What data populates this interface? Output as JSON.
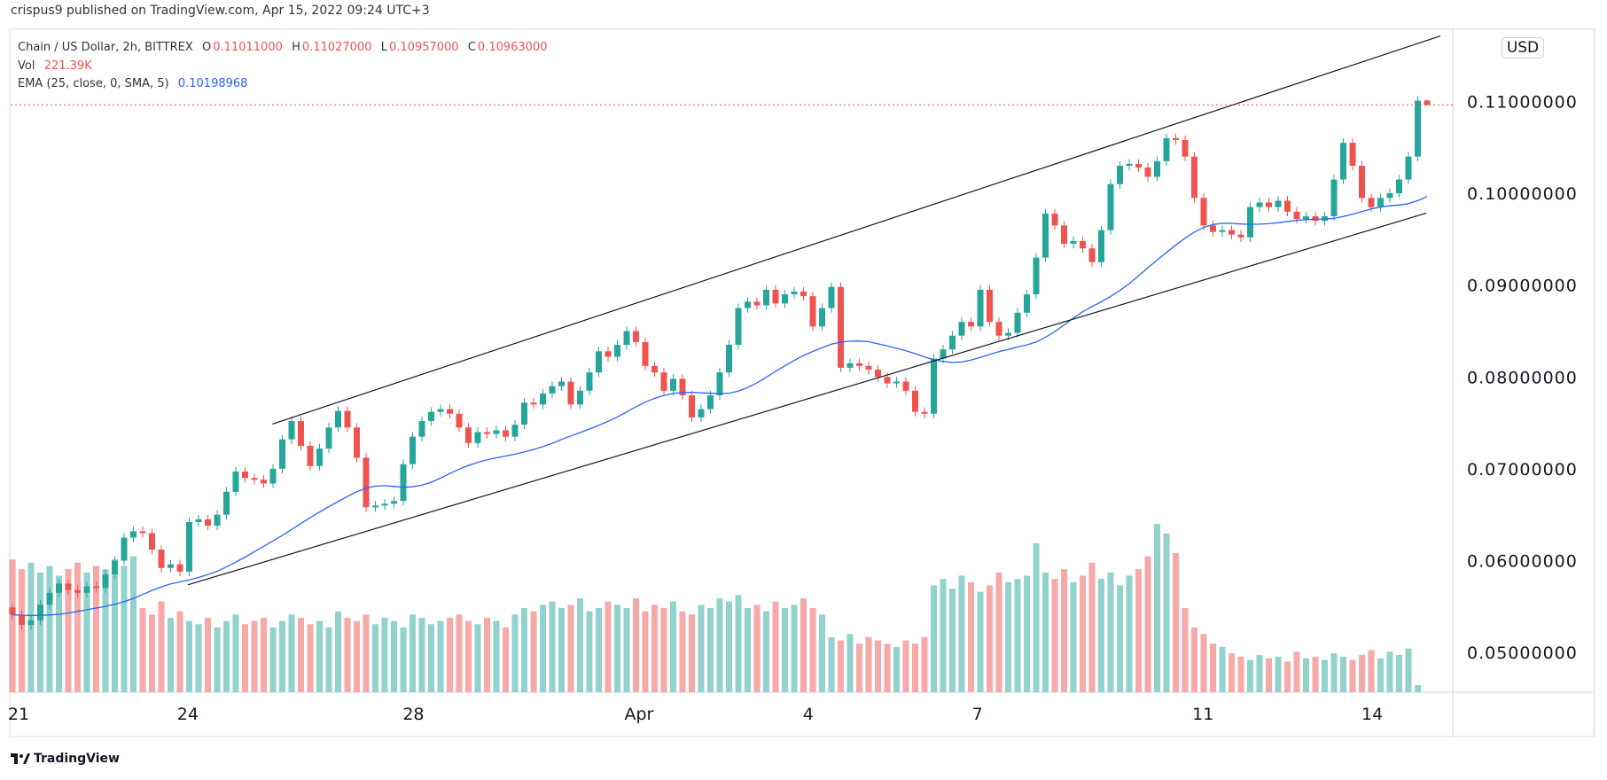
{
  "published": "crispus9 published on TradingView.com, Apr 15, 2022 09:24 UTC+3",
  "legend": {
    "symbol": "Chain / US Dollar, 2h, BITTREX",
    "o_label": "O",
    "o": "0.11011000",
    "h_label": "H",
    "h": "0.11027000",
    "l_label": "L",
    "l": "0.10957000",
    "c_label": "C",
    "c": "0.10963000",
    "vol_label": "Vol",
    "vol": "221.39K",
    "ema_label": "EMA (25, close, 0, SMA, 5)",
    "ema": "0.10198968"
  },
  "currency_button": "USD",
  "brand": "TradingView",
  "colors": {
    "up": "#26a69a",
    "down": "#ef5350",
    "vol_up": "#92d2cc",
    "vol_down": "#f7a9a7",
    "ema": "#2962ff",
    "channel": "#131722",
    "last_price_line": "#ef5350"
  },
  "chart_data": {
    "type": "candlestick",
    "title": "",
    "ylim": [
      0.0465,
      0.1172
    ],
    "grid": false,
    "y_ticks": [
      "0.11000000",
      "0.10000000",
      "0.09000000",
      "0.08000000",
      "0.07000000",
      "0.06000000",
      "0.05000000"
    ],
    "y_tick_values": [
      0.11,
      0.1,
      0.09,
      0.08,
      0.07,
      0.06,
      0.05
    ],
    "x_ticks": [
      {
        "label": "21",
        "date": "2022-03-21T00:00"
      },
      {
        "label": "24",
        "date": "2022-03-24T00:00"
      },
      {
        "label": "28",
        "date": "2022-03-28T00:00"
      },
      {
        "label": "Apr",
        "date": "2022-04-01T00:00"
      },
      {
        "label": "4",
        "date": "2022-04-04T00:00"
      },
      {
        "label": "7",
        "date": "2022-04-07T00:00"
      },
      {
        "label": "11",
        "date": "2022-04-11T00:00"
      },
      {
        "label": "14",
        "date": "2022-04-14T00:00"
      }
    ],
    "close": [
      0.0541,
      0.053,
      0.0535,
      0.0552,
      0.0565,
      0.0575,
      0.0568,
      0.0565,
      0.0572,
      0.057,
      0.0585,
      0.06,
      0.0625,
      0.0632,
      0.063,
      0.0612,
      0.0592,
      0.0596,
      0.0588,
      0.0642,
      0.0645,
      0.0638,
      0.065,
      0.0675,
      0.0697,
      0.069,
      0.0688,
      0.0684,
      0.07,
      0.0732,
      0.0752,
      0.0725,
      0.0703,
      0.0722,
      0.0745,
      0.0763,
      0.0745,
      0.0712,
      0.0658,
      0.066,
      0.0662,
      0.0665,
      0.0705,
      0.0735,
      0.0752,
      0.0762,
      0.0765,
      0.076,
      0.0745,
      0.0728,
      0.074,
      0.0738,
      0.0742,
      0.0735,
      0.0748,
      0.0772,
      0.077,
      0.0782,
      0.079,
      0.0795,
      0.077,
      0.0785,
      0.0805,
      0.0828,
      0.0822,
      0.0835,
      0.085,
      0.0838,
      0.0812,
      0.0805,
      0.0785,
      0.0798,
      0.078,
      0.0756,
      0.0765,
      0.078,
      0.0805,
      0.0835,
      0.0875,
      0.0882,
      0.0878,
      0.0895,
      0.088,
      0.089,
      0.0893,
      0.0888,
      0.0855,
      0.0875,
      0.0898,
      0.081,
      0.0815,
      0.0812,
      0.0808,
      0.08,
      0.0793,
      0.0795,
      0.0785,
      0.0762,
      0.076,
      0.082,
      0.083,
      0.0845,
      0.086,
      0.0855,
      0.0895,
      0.086,
      0.0845,
      0.0848,
      0.087,
      0.089,
      0.093,
      0.0978,
      0.0965,
      0.0945,
      0.0948,
      0.094,
      0.0925,
      0.096,
      0.101,
      0.103,
      0.1032,
      0.1028,
      0.1018,
      0.1035,
      0.106,
      0.1058,
      0.104,
      0.0995,
      0.0965,
      0.0958,
      0.096,
      0.0955,
      0.0952,
      0.0985,
      0.099,
      0.0985,
      0.0992,
      0.098,
      0.0972,
      0.0975,
      0.097,
      0.0975,
      0.1015,
      0.1055,
      0.103,
      0.0995,
      0.0985,
      0.0995,
      0.1,
      0.1015,
      0.104,
      0.1101
    ],
    "last_candle": {
      "open": 0.11011,
      "high": 0.11027,
      "low": 0.10957,
      "close": 0.10963
    },
    "volume_k": [
      4100,
      3800,
      4000,
      3700,
      3900,
      3600,
      3800,
      4000,
      3700,
      3900,
      3800,
      4100,
      3900,
      4200,
      2600,
      2400,
      2800,
      2300,
      2500,
      2200,
      2100,
      2300,
      2000,
      2200,
      2400,
      2100,
      2200,
      2300,
      2000,
      2200,
      2400,
      2300,
      2100,
      2200,
      2000,
      2500,
      2300,
      2200,
      2400,
      2100,
      2300,
      2200,
      2000,
      2400,
      2300,
      2100,
      2200,
      2300,
      2400,
      2200,
      2100,
      2300,
      2200,
      2000,
      2400,
      2600,
      2500,
      2700,
      2800,
      2600,
      2700,
      2900,
      2500,
      2600,
      2800,
      2700,
      2600,
      2900,
      2500,
      2700,
      2600,
      2800,
      2500,
      2400,
      2700,
      2600,
      2900,
      2800,
      3000,
      2600,
      2700,
      2500,
      2800,
      2600,
      2700,
      2900,
      2600,
      2400,
      1700,
      1600,
      1800,
      1500,
      1700,
      1600,
      1500,
      1400,
      1600,
      1500,
      1700,
      3300,
      3500,
      3200,
      3600,
      3400,
      3100,
      3300,
      3700,
      3400,
      3500,
      3600,
      4600,
      3700,
      3500,
      3800,
      3400,
      3600,
      4000,
      3500,
      3700,
      3300,
      3600,
      3800,
      4200,
      5200,
      4900,
      4300,
      2600,
      2000,
      1800,
      1500,
      1400,
      1200,
      1100,
      1000,
      1150,
      1050,
      1100,
      950,
      1250,
      1050,
      1100,
      1000,
      1200,
      1100,
      1000,
      1150,
      1300,
      1050,
      1250,
      1150,
      1350,
      221
    ],
    "ema_params": {
      "length": 25,
      "smoothing": "SMA",
      "smoothing_length": 5
    },
    "channel_lines": [
      {
        "start": {
          "date": "2022-03-25T12:00",
          "price": 0.07487
        },
        "end": {
          "date": "2022-04-15T05:00",
          "price": 0.11714
        }
      },
      {
        "start": {
          "date": "2022-03-24T00:00",
          "price": 0.05736
        },
        "end": {
          "date": "2022-04-14T23:00",
          "price": 0.09784
        }
      }
    ],
    "last_price": 0.10963
  }
}
